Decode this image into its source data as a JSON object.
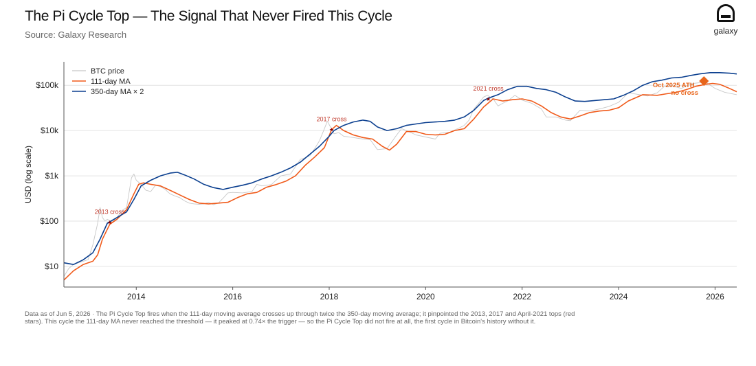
{
  "header": {
    "title": "The Pi Cycle Top — The Signal That Never Fired This Cycle",
    "subtitle": "Source: Galaxy Research"
  },
  "logo": {
    "text": "galaxy"
  },
  "footnote": "Data as of Jun 5, 2026 · The Pi Cycle Top fires when the 111-day moving average crosses up through twice the 350-day moving average; it pinpointed the 2013, 2017 and April-2021 tops (red stars). This cycle the 111-day MA never reached the threshold — it peaked at 0.74× the trigger — so the Pi Cycle Top did not fire at all, the first cycle in Bitcoin's history without it.",
  "colors": {
    "price": "#c8c8c8",
    "ma111": "#f05a1a",
    "ma350x2": "#0b3f8f",
    "grid": "#e3e3e3",
    "star": "#c0392b",
    "ath": "#e8651b"
  },
  "chart_data": {
    "type": "line",
    "ylabel": "USD (log scale)",
    "yscale": "log",
    "xlim": [
      2012.5,
      2026.45
    ],
    "ylim": [
      3.5,
      330000
    ],
    "grid": "horizontal",
    "legend_position": "top-left",
    "x_ticks": [
      "2014",
      "2016",
      "2018",
      "2020",
      "2022",
      "2024",
      "2026"
    ],
    "y_ticks": [
      {
        "value": 10,
        "label": "$10"
      },
      {
        "value": 100,
        "label": "$100"
      },
      {
        "value": 1000,
        "label": "$1k"
      },
      {
        "value": 10000,
        "label": "$10k"
      },
      {
        "value": 100000,
        "label": "$100k"
      }
    ],
    "series": [
      {
        "name": "BTC price",
        "x": [
          2012.5,
          2012.6,
          2012.7,
          2012.8,
          2012.9,
          2013.0,
          2013.1,
          2013.2,
          2013.25,
          2013.3,
          2013.35,
          2013.4,
          2013.5,
          2013.6,
          2013.7,
          2013.8,
          2013.9,
          2013.95,
          2014.0,
          2014.1,
          2014.2,
          2014.3,
          2014.4,
          2014.5,
          2014.6,
          2014.7,
          2014.8,
          2014.9,
          2015.0,
          2015.1,
          2015.2,
          2015.3,
          2015.4,
          2015.5,
          2015.6,
          2015.7,
          2015.8,
          2015.9,
          2016.0,
          2016.2,
          2016.4,
          2016.5,
          2016.6,
          2016.8,
          2017.0,
          2017.2,
          2017.4,
          2017.5,
          2017.6,
          2017.7,
          2017.8,
          2017.9,
          2017.96,
          2018.0,
          2018.1,
          2018.2,
          2018.3,
          2018.5,
          2018.7,
          2018.85,
          2019.0,
          2019.2,
          2019.4,
          2019.5,
          2019.6,
          2019.8,
          2020.0,
          2020.2,
          2020.3,
          2020.5,
          2020.7,
          2020.8,
          2020.9,
          2021.0,
          2021.1,
          2021.2,
          2021.28,
          2021.4,
          2021.5,
          2021.6,
          2021.7,
          2021.85,
          2022.0,
          2022.2,
          2022.4,
          2022.5,
          2022.7,
          2022.9,
          2023.0,
          2023.2,
          2023.4,
          2023.6,
          2023.8,
          2024.0,
          2024.2,
          2024.4,
          2024.6,
          2024.8,
          2024.95,
          2025.1,
          2025.3,
          2025.5,
          2025.7,
          2025.77,
          2025.85,
          2026.0,
          2026.2,
          2026.45
        ],
        "y": [
          6,
          9,
          11,
          12,
          13,
          14,
          30,
          90,
          200,
          120,
          100,
          110,
          95,
          120,
          170,
          200,
          900,
          1100,
          800,
          650,
          480,
          450,
          620,
          580,
          500,
          400,
          360,
          330,
          280,
          250,
          240,
          235,
          240,
          260,
          230,
          250,
          320,
          420,
          430,
          420,
          450,
          650,
          600,
          640,
          1000,
          1100,
          2300,
          2500,
          2800,
          4000,
          6000,
          11000,
          16000,
          13500,
          8500,
          9000,
          7500,
          7000,
          6500,
          6300,
          3800,
          4000,
          8000,
          11000,
          10000,
          8000,
          7200,
          6500,
          8700,
          9200,
          11500,
          13000,
          17000,
          30000,
          40000,
          55000,
          60000,
          50000,
          35000,
          40000,
          45000,
          60000,
          47000,
          40000,
          30000,
          20000,
          20000,
          17000,
          16500,
          28000,
          27000,
          30000,
          34000,
          42000,
          68000,
          63000,
          58000,
          68000,
          95000,
          98000,
          85000,
          108000,
          115000,
          124000,
          110000,
          85000,
          70000,
          62000
        ]
      },
      {
        "name": "111-day MA",
        "x": [
          2012.5,
          2012.7,
          2012.9,
          2013.1,
          2013.2,
          2013.3,
          2013.45,
          2013.6,
          2013.8,
          2013.95,
          2014.05,
          2014.15,
          2014.3,
          2014.5,
          2014.7,
          2014.9,
          2015.1,
          2015.3,
          2015.5,
          2015.7,
          2015.9,
          2016.1,
          2016.3,
          2016.5,
          2016.7,
          2016.9,
          2017.1,
          2017.3,
          2017.5,
          2017.7,
          2017.9,
          2018.05,
          2018.15,
          2018.3,
          2018.5,
          2018.7,
          2018.9,
          2019.1,
          2019.25,
          2019.4,
          2019.6,
          2019.8,
          2020.0,
          2020.2,
          2020.4,
          2020.6,
          2020.8,
          2021.0,
          2021.2,
          2021.4,
          2021.6,
          2021.8,
          2022.0,
          2022.2,
          2022.4,
          2022.6,
          2022.8,
          2023.0,
          2023.2,
          2023.4,
          2023.6,
          2023.8,
          2024.0,
          2024.2,
          2024.5,
          2024.8,
          2025.0,
          2025.2,
          2025.4,
          2025.6,
          2025.8,
          2025.95,
          2026.1,
          2026.3,
          2026.45
        ],
        "y": [
          5,
          8,
          11,
          13,
          18,
          40,
          85,
          110,
          180,
          400,
          650,
          700,
          650,
          600,
          480,
          380,
          300,
          250,
          240,
          250,
          260,
          330,
          400,
          430,
          560,
          640,
          760,
          1000,
          1700,
          2600,
          4200,
          10500,
          13000,
          10000,
          8000,
          7000,
          6500,
          4500,
          3700,
          5000,
          9500,
          9500,
          8300,
          8000,
          8300,
          10000,
          11000,
          18000,
          33000,
          50000,
          45000,
          48000,
          50000,
          45000,
          35000,
          25000,
          20000,
          18000,
          21000,
          25000,
          27000,
          28000,
          32000,
          45000,
          62000,
          60000,
          65000,
          70000,
          80000,
          95000,
          105000,
          110000,
          105000,
          85000,
          72000
        ]
      },
      {
        "name": "350-day MA × 2",
        "x": [
          2012.5,
          2012.7,
          2012.9,
          2013.1,
          2013.25,
          2013.4,
          2013.6,
          2013.8,
          2013.95,
          2014.1,
          2014.3,
          2014.5,
          2014.7,
          2014.85,
          2015.0,
          2015.2,
          2015.4,
          2015.6,
          2015.8,
          2016.0,
          2016.2,
          2016.4,
          2016.6,
          2016.8,
          2017.0,
          2017.2,
          2017.4,
          2017.6,
          2017.8,
          2018.0,
          2018.1,
          2018.3,
          2018.5,
          2018.7,
          2018.85,
          2019.0,
          2019.2,
          2019.4,
          2019.6,
          2019.8,
          2020.0,
          2020.2,
          2020.4,
          2020.6,
          2020.8,
          2021.0,
          2021.2,
          2021.3,
          2021.5,
          2021.7,
          2021.9,
          2022.1,
          2022.3,
          2022.5,
          2022.7,
          2022.9,
          2023.1,
          2023.3,
          2023.5,
          2023.7,
          2023.9,
          2024.1,
          2024.3,
          2024.5,
          2024.7,
          2024.9,
          2025.1,
          2025.3,
          2025.5,
          2025.7,
          2025.9,
          2026.1,
          2026.3,
          2026.45
        ],
        "y": [
          12,
          11,
          14,
          20,
          40,
          90,
          120,
          160,
          300,
          600,
          800,
          1000,
          1150,
          1200,
          1050,
          850,
          650,
          550,
          500,
          560,
          620,
          700,
          850,
          1000,
          1200,
          1500,
          2000,
          3000,
          4500,
          7500,
          10000,
          13000,
          15500,
          17000,
          16000,
          12000,
          10000,
          11000,
          13000,
          14000,
          15000,
          15500,
          16000,
          17000,
          20000,
          28000,
          46000,
          52000,
          62000,
          80000,
          95000,
          95000,
          85000,
          80000,
          70000,
          55000,
          45000,
          44000,
          46000,
          48000,
          50000,
          60000,
          75000,
          100000,
          120000,
          130000,
          145000,
          150000,
          165000,
          180000,
          190000,
          190000,
          185000,
          178000
        ]
      }
    ],
    "annotations": [
      {
        "label": "2013 cross",
        "x": 2013.45,
        "y": 95
      },
      {
        "label": "2017 cross",
        "x": 2018.05,
        "y": 10500
      },
      {
        "label": "2021 cross",
        "x": 2021.3,
        "y": 50000
      },
      {
        "label": "Oct 2025 ATH — no cross",
        "line1": "Oct 2025 ATH",
        "line2": "no cross",
        "x": 2025.77,
        "y": 124000
      }
    ]
  }
}
